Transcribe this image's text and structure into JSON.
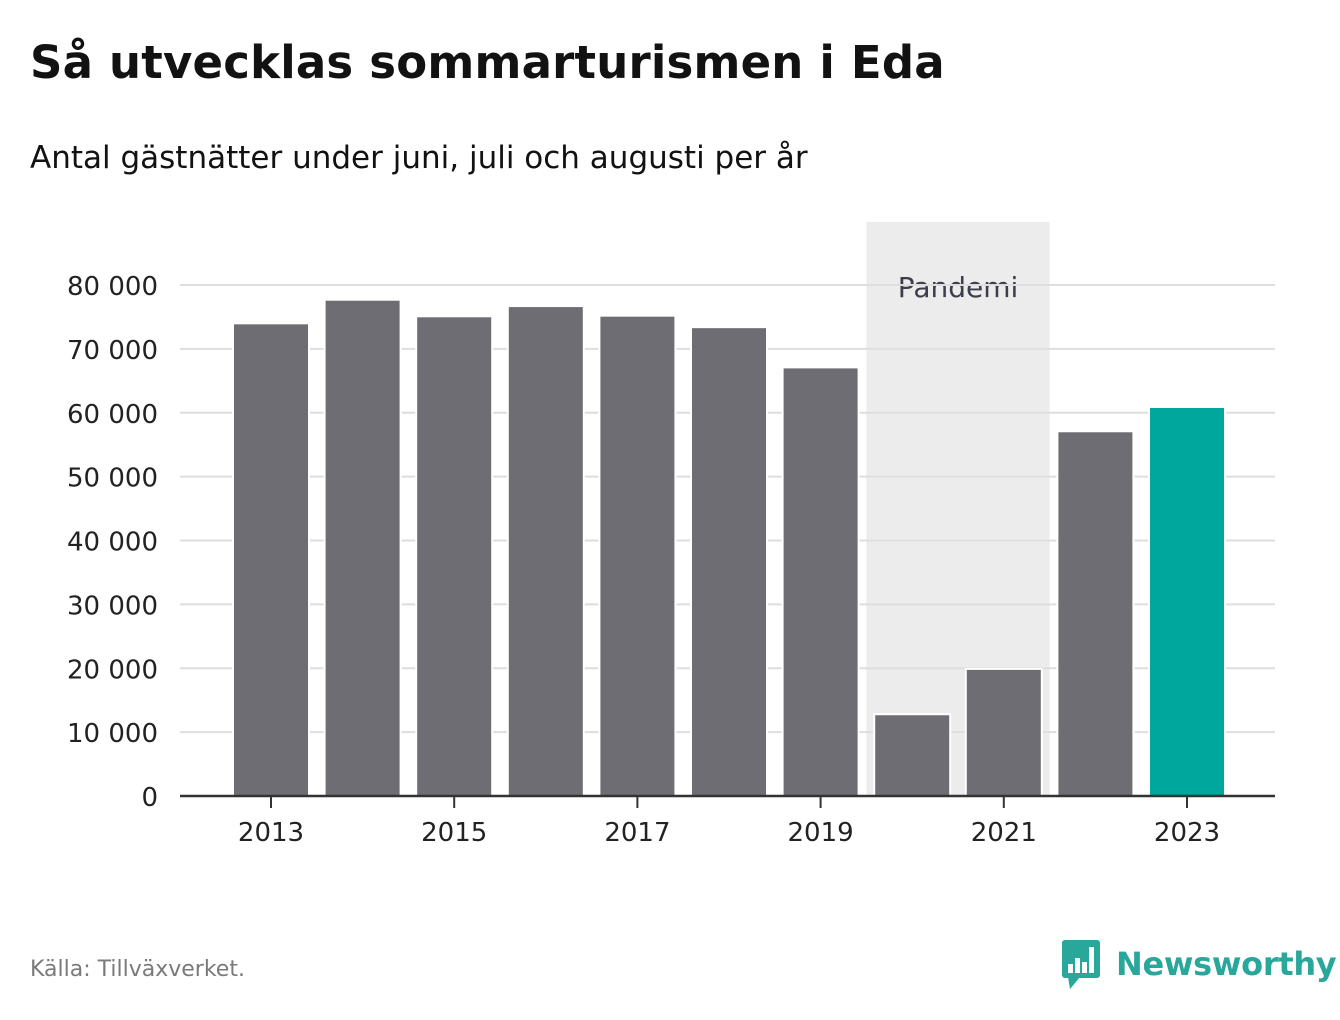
{
  "header": {
    "title": "Så utvecklas sommarturismen i Eda",
    "subtitle": "Antal gästnätter under juni, juli och augusti per år"
  },
  "footer": {
    "source": "Källa: Tillväxverket.",
    "brand": "Newsworthy"
  },
  "colors": {
    "bar": "#6e6d73",
    "highlight": "#00a79d",
    "pandemic_band": "#ececec",
    "grid": "#dedede",
    "axis": "#333333",
    "brand": "#2aa79b"
  },
  "icons": {
    "logo": "bar-chart-speech-bubble-icon"
  },
  "chart_data": {
    "type": "bar",
    "categories": [
      "2013",
      "2014",
      "2015",
      "2016",
      "2017",
      "2018",
      "2019",
      "2020",
      "2021",
      "2022",
      "2023"
    ],
    "values": [
      74000,
      77700,
      75100,
      76700,
      75200,
      73400,
      67100,
      12800,
      19900,
      57100,
      60900
    ],
    "highlight_category": "2023",
    "x_tick_labels": [
      "2013",
      "2015",
      "2017",
      "2019",
      "2021",
      "2023"
    ],
    "y_ticks": [
      0,
      10000,
      20000,
      30000,
      40000,
      50000,
      60000,
      70000,
      80000
    ],
    "y_tick_labels": [
      "0",
      "10 000",
      "20 000",
      "30 000",
      "40 000",
      "50 000",
      "60 000",
      "70 000",
      "80 000"
    ],
    "ylim": [
      0,
      80000
    ],
    "grid": true,
    "xlabel": "",
    "ylabel": "",
    "annotation": {
      "text": "Pandemi",
      "from": "2020",
      "to": "2021"
    }
  }
}
